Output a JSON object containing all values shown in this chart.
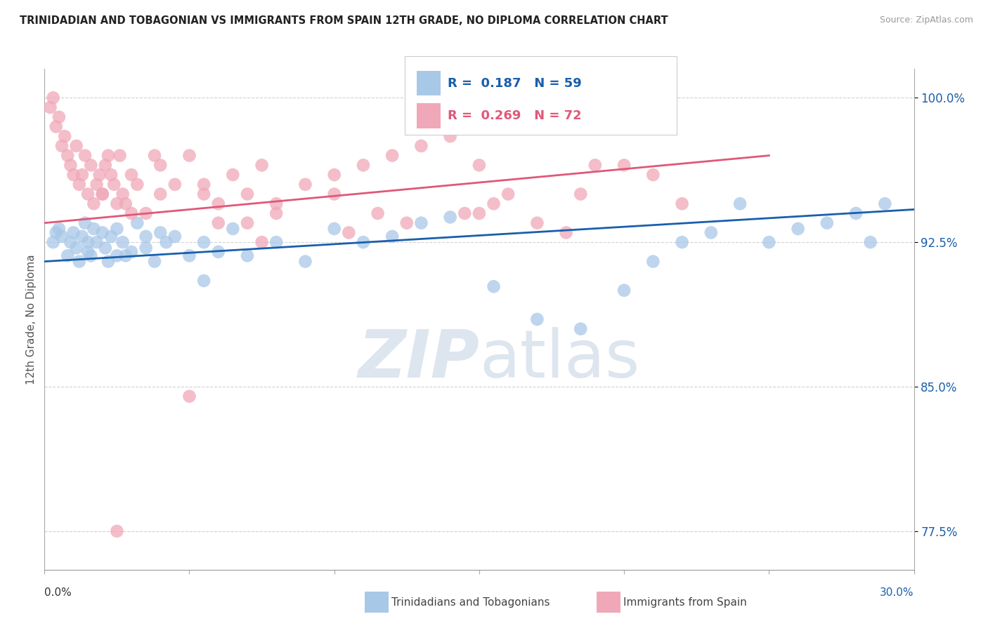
{
  "title": "TRINIDADIAN AND TOBAGONIAN VS IMMIGRANTS FROM SPAIN 12TH GRADE, NO DIPLOMA CORRELATION CHART",
  "source": "Source: ZipAtlas.com",
  "ylabel_label": "12th Grade, No Diploma",
  "legend_blue_label": "Trinidadians and Tobagonians",
  "legend_pink_label": "Immigrants from Spain",
  "R_blue": 0.187,
  "N_blue": 59,
  "R_pink": 0.269,
  "N_pink": 72,
  "blue_color": "#a8c8e8",
  "pink_color": "#f0a8b8",
  "blue_line_color": "#1a5fac",
  "pink_line_color": "#e05878",
  "watermark_text": "ZIPatlas",
  "watermark_color": "#dde5ef",
  "background_color": "#ffffff",
  "xlim": [
    0.0,
    30.0
  ],
  "ylim": [
    75.5,
    101.5
  ],
  "yticks": [
    77.5,
    85.0,
    92.5,
    100.0
  ],
  "blue_x": [
    0.3,
    0.4,
    0.5,
    0.6,
    0.8,
    0.9,
    1.0,
    1.1,
    1.2,
    1.3,
    1.4,
    1.5,
    1.6,
    1.7,
    1.8,
    2.0,
    2.1,
    2.2,
    2.3,
    2.5,
    2.7,
    2.8,
    3.0,
    3.2,
    3.5,
    3.8,
    4.0,
    4.2,
    4.5,
    5.0,
    5.5,
    6.0,
    6.5,
    7.0,
    8.0,
    9.0,
    10.0,
    11.0,
    12.0,
    13.0,
    14.0,
    15.5,
    17.0,
    18.5,
    20.0,
    21.0,
    22.0,
    23.0,
    24.0,
    25.0,
    26.0,
    27.0,
    28.0,
    29.0,
    1.5,
    2.5,
    3.5,
    5.5,
    28.5
  ],
  "blue_y": [
    92.5,
    93.0,
    93.2,
    92.8,
    91.8,
    92.5,
    93.0,
    92.2,
    91.5,
    92.8,
    93.5,
    92.0,
    91.8,
    93.2,
    92.5,
    93.0,
    92.2,
    91.5,
    92.8,
    93.2,
    92.5,
    91.8,
    92.0,
    93.5,
    92.8,
    91.5,
    93.0,
    92.5,
    92.8,
    91.8,
    92.5,
    92.0,
    93.2,
    91.8,
    92.5,
    91.5,
    93.2,
    92.5,
    92.8,
    93.5,
    93.8,
    90.2,
    88.5,
    88.0,
    90.0,
    91.5,
    92.5,
    93.0,
    94.5,
    92.5,
    93.2,
    93.5,
    94.0,
    94.5,
    92.5,
    91.8,
    92.2,
    90.5,
    92.5
  ],
  "pink_x": [
    0.2,
    0.3,
    0.4,
    0.5,
    0.6,
    0.7,
    0.8,
    0.9,
    1.0,
    1.1,
    1.2,
    1.3,
    1.4,
    1.5,
    1.6,
    1.7,
    1.8,
    1.9,
    2.0,
    2.1,
    2.2,
    2.3,
    2.4,
    2.5,
    2.6,
    2.7,
    2.8,
    3.0,
    3.2,
    3.5,
    3.8,
    4.0,
    4.5,
    5.0,
    5.5,
    6.0,
    6.5,
    7.0,
    7.5,
    8.0,
    9.0,
    10.0,
    11.0,
    12.0,
    13.0,
    14.0,
    15.0,
    16.0,
    17.0,
    18.5,
    20.0,
    21.0,
    22.0,
    3.0,
    4.0,
    6.0,
    8.0,
    10.0,
    12.5,
    15.5,
    19.0,
    2.0,
    7.0,
    11.5,
    5.0,
    14.5,
    18.0,
    7.5,
    10.5,
    15.0,
    2.5,
    5.5
  ],
  "pink_y": [
    99.5,
    100.0,
    98.5,
    99.0,
    97.5,
    98.0,
    97.0,
    96.5,
    96.0,
    97.5,
    95.5,
    96.0,
    97.0,
    95.0,
    96.5,
    94.5,
    95.5,
    96.0,
    95.0,
    96.5,
    97.0,
    96.0,
    95.5,
    94.5,
    97.0,
    95.0,
    94.5,
    96.0,
    95.5,
    94.0,
    97.0,
    96.5,
    95.5,
    97.0,
    95.5,
    94.5,
    96.0,
    95.0,
    96.5,
    94.5,
    95.5,
    96.0,
    96.5,
    97.0,
    97.5,
    98.0,
    96.5,
    95.0,
    93.5,
    95.0,
    96.5,
    96.0,
    94.5,
    94.0,
    95.0,
    93.5,
    94.0,
    95.0,
    93.5,
    94.5,
    96.5,
    95.0,
    93.5,
    94.0,
    84.5,
    94.0,
    93.0,
    92.5,
    93.0,
    94.0,
    77.5,
    95.0
  ],
  "blue_line_x": [
    0.0,
    30.0
  ],
  "blue_line_y": [
    91.5,
    94.2
  ],
  "pink_line_x": [
    0.0,
    25.0
  ],
  "pink_line_y": [
    93.5,
    97.0
  ]
}
